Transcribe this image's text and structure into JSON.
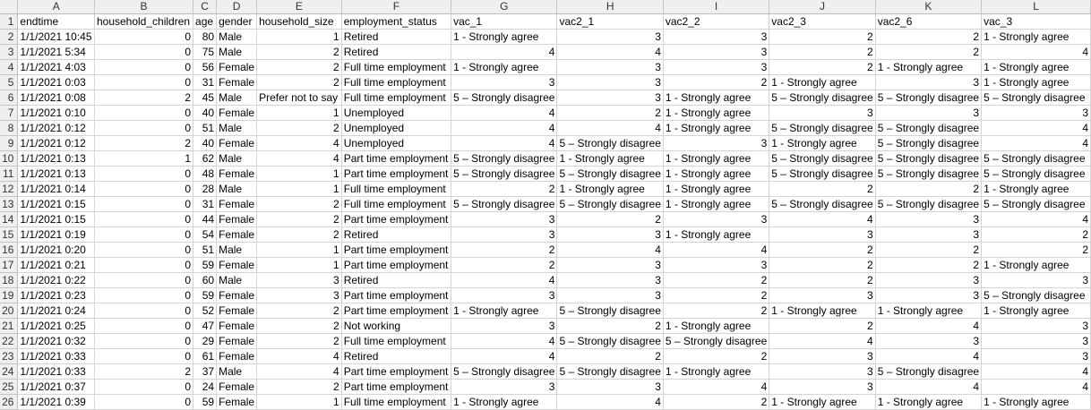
{
  "columns": [
    "A",
    "B",
    "C",
    "D",
    "E",
    "F",
    "G",
    "H",
    "I",
    "J",
    "K",
    "L"
  ],
  "numeric_columns": [
    1,
    2,
    4
  ],
  "rows": [
    [
      "endtime",
      "household_children",
      "age",
      "gender",
      "household_size",
      "employment_status",
      "vac_1",
      "vac2_1",
      "vac2_2",
      "vac2_3",
      "vac2_6",
      "vac_3"
    ],
    [
      "1/1/2021 10:45",
      "0",
      "80",
      "Male",
      "1",
      "Retired",
      "1 - Strongly agree",
      "3",
      "3",
      "2",
      "2",
      "1 - Strongly agree"
    ],
    [
      "1/1/2021 5:34",
      "0",
      "75",
      "Male",
      "2",
      "Retired",
      "4",
      "4",
      "3",
      "2",
      "2",
      "4"
    ],
    [
      "1/1/2021 4:03",
      "0",
      "56",
      "Female",
      "2",
      "Full time employment",
      "1 - Strongly agree",
      "3",
      "3",
      "2",
      "1 - Strongly agree",
      "1 - Strongly agree"
    ],
    [
      "1/1/2021 0:03",
      "0",
      "31",
      "Female",
      "2",
      "Full time employment",
      "3",
      "3",
      "2",
      "1 - Strongly agree",
      "3",
      "1 - Strongly agree"
    ],
    [
      "1/1/2021 0:08",
      "2",
      "45",
      "Male",
      "Prefer not to say",
      "Full time employment",
      "5 – Strongly disagree",
      "3",
      "1 - Strongly agree",
      "5 – Strongly disagree",
      "5 – Strongly disagree",
      "5 – Strongly disagree"
    ],
    [
      "1/1/2021 0:10",
      "0",
      "40",
      "Female",
      "1",
      "Unemployed",
      "4",
      "2",
      "1 - Strongly agree",
      "3",
      "3",
      "3"
    ],
    [
      "1/1/2021 0:12",
      "0",
      "51",
      "Male",
      "2",
      "Unemployed",
      "4",
      "4",
      "1 - Strongly agree",
      "5 – Strongly disagree",
      "5 – Strongly disagree",
      "4"
    ],
    [
      "1/1/2021 0:12",
      "2",
      "40",
      "Female",
      "4",
      "Unemployed",
      "4",
      "5 – Strongly disagree",
      "3",
      "1 - Strongly agree",
      "5 – Strongly disagree",
      "4"
    ],
    [
      "1/1/2021 0:13",
      "1",
      "62",
      "Male",
      "4",
      "Part time employment",
      "5 – Strongly disagree",
      "1 - Strongly agree",
      "1 - Strongly agree",
      "5 – Strongly disagree",
      "5 – Strongly disagree",
      "5 – Strongly disagree"
    ],
    [
      "1/1/2021 0:13",
      "0",
      "48",
      "Female",
      "1",
      "Part time employment",
      "5 – Strongly disagree",
      "5 – Strongly disagree",
      "1 - Strongly agree",
      "5 – Strongly disagree",
      "5 – Strongly disagree",
      "5 – Strongly disagree"
    ],
    [
      "1/1/2021 0:14",
      "0",
      "28",
      "Male",
      "1",
      "Full time employment",
      "2",
      "1 - Strongly agree",
      "1 - Strongly agree",
      "2",
      "2",
      "1 - Strongly agree"
    ],
    [
      "1/1/2021 0:15",
      "0",
      "31",
      "Female",
      "2",
      "Full time employment",
      "5 – Strongly disagree",
      "5 – Strongly disagree",
      "1 - Strongly agree",
      "5 – Strongly disagree",
      "5 – Strongly disagree",
      "5 – Strongly disagree"
    ],
    [
      "1/1/2021 0:15",
      "0",
      "44",
      "Female",
      "2",
      "Part time employment",
      "3",
      "2",
      "3",
      "4",
      "3",
      "4"
    ],
    [
      "1/1/2021 0:19",
      "0",
      "54",
      "Female",
      "2",
      "Retired",
      "3",
      "3",
      "1 - Strongly agree",
      "3",
      "3",
      "2"
    ],
    [
      "1/1/2021 0:20",
      "0",
      "51",
      "Male",
      "1",
      "Part time employment",
      "2",
      "4",
      "4",
      "2",
      "2",
      "2"
    ],
    [
      "1/1/2021 0:21",
      "0",
      "59",
      "Female",
      "1",
      "Part time employment",
      "2",
      "3",
      "3",
      "2",
      "2",
      "1 - Strongly agree"
    ],
    [
      "1/1/2021 0:22",
      "0",
      "60",
      "Male",
      "3",
      "Retired",
      "4",
      "3",
      "2",
      "2",
      "3",
      "3"
    ],
    [
      "1/1/2021 0:23",
      "0",
      "59",
      "Female",
      "3",
      "Part time employment",
      "3",
      "3",
      "2",
      "3",
      "3",
      "5 – Strongly disagree"
    ],
    [
      "1/1/2021 0:24",
      "0",
      "52",
      "Female",
      "2",
      "Part time employment",
      "1 - Strongly agree",
      "5 – Strongly disagree",
      "2",
      "1 - Strongly agree",
      "1 - Strongly agree",
      "1 - Strongly agree"
    ],
    [
      "1/1/2021 0:25",
      "0",
      "47",
      "Female",
      "2",
      "Not working",
      "3",
      "2",
      "1 - Strongly agree",
      "2",
      "4",
      "3"
    ],
    [
      "1/1/2021 0:32",
      "0",
      "29",
      "Female",
      "2",
      "Full time employment",
      "4",
      "5 – Strongly disagree",
      "5 – Strongly disagree",
      "4",
      "3",
      "3"
    ],
    [
      "1/1/2021 0:33",
      "0",
      "61",
      "Female",
      "4",
      "Retired",
      "4",
      "2",
      "2",
      "3",
      "4",
      "3"
    ],
    [
      "1/1/2021 0:33",
      "2",
      "37",
      "Male",
      "4",
      "Part time employment",
      "5 – Strongly disagree",
      "5 – Strongly disagree",
      "1 - Strongly agree",
      "3",
      "5 – Strongly disagree",
      "4"
    ],
    [
      "1/1/2021 0:37",
      "0",
      "24",
      "Female",
      "2",
      "Part time employment",
      "3",
      "3",
      "4",
      "3",
      "4",
      "4"
    ],
    [
      "1/1/2021 0:39",
      "0",
      "59",
      "Female",
      "1",
      "Full time employment",
      "1 - Strongly agree",
      "4",
      "2",
      "1 - Strongly agree",
      "1 - Strongly agree",
      "1 - Strongly agree"
    ]
  ]
}
